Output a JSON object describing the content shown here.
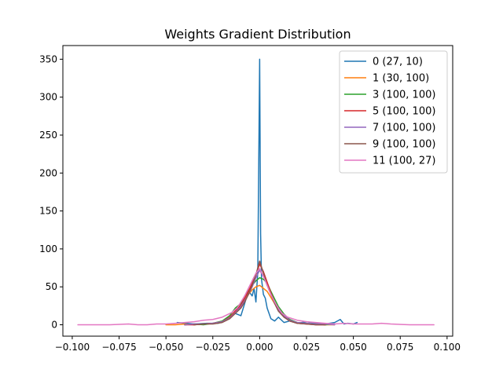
{
  "chart_data": {
    "type": "line",
    "title": "Weights Gradient Distribution",
    "xlabel": "",
    "ylabel": "",
    "xlim": [
      -0.105,
      0.103
    ],
    "ylim": [
      -15,
      368
    ],
    "xticks": [
      -0.1,
      -0.075,
      -0.05,
      -0.025,
      0.0,
      0.025,
      0.05,
      0.075,
      0.1
    ],
    "xtick_labels": [
      "−0.100",
      "−0.075",
      "−0.050",
      "−0.025",
      "0.000",
      "0.025",
      "0.050",
      "0.075",
      "0.100"
    ],
    "yticks": [
      0,
      50,
      100,
      150,
      200,
      250,
      300,
      350
    ],
    "ytick_labels": [
      "0",
      "50",
      "100",
      "150",
      "200",
      "250",
      "300",
      "350"
    ],
    "grid": false,
    "legend_position": "top-right",
    "series": [
      {
        "name": "0 (27, 10)",
        "color": "#1f77b4",
        "x": [
          -0.044,
          -0.035,
          -0.028,
          -0.022,
          -0.017,
          -0.013,
          -0.01,
          -0.008,
          -0.006,
          -0.004,
          -0.003,
          -0.002,
          -0.001,
          0.0,
          0.0005,
          0.001,
          0.002,
          0.003,
          0.004,
          0.005,
          0.006,
          0.008,
          0.01,
          0.013,
          0.016,
          0.02,
          0.025,
          0.03,
          0.035,
          0.04,
          0.043,
          0.045,
          0.047,
          0.05,
          0.052
        ],
        "y": [
          3,
          1,
          2,
          2,
          8,
          15,
          12,
          28,
          45,
          38,
          48,
          30,
          70,
          350,
          120,
          60,
          40,
          35,
          22,
          15,
          8,
          5,
          10,
          3,
          5,
          2,
          4,
          2,
          1,
          3,
          7,
          1,
          2,
          1,
          3
        ]
      },
      {
        "name": "1 (30, 100)",
        "color": "#ff7f0e",
        "x": [
          -0.05,
          -0.045,
          -0.04,
          -0.035,
          -0.03,
          -0.025,
          -0.02,
          -0.016,
          -0.013,
          -0.01,
          -0.008,
          -0.006,
          -0.004,
          -0.002,
          0.0,
          0.002,
          0.004,
          0.006,
          0.008,
          0.01,
          0.013,
          0.016,
          0.02,
          0.025,
          0.03,
          0.035,
          0.04
        ],
        "y": [
          0,
          0,
          1,
          0,
          1,
          2,
          4,
          10,
          18,
          26,
          34,
          40,
          46,
          50,
          52,
          48,
          44,
          36,
          28,
          20,
          12,
          6,
          3,
          1,
          1,
          0,
          0
        ]
      },
      {
        "name": "3 (100, 100)",
        "color": "#2ca02c",
        "x": [
          -0.04,
          -0.035,
          -0.03,
          -0.025,
          -0.02,
          -0.016,
          -0.013,
          -0.01,
          -0.008,
          -0.006,
          -0.004,
          -0.002,
          0.0,
          0.002,
          0.004,
          0.006,
          0.008,
          0.01,
          0.013,
          0.016,
          0.02,
          0.025,
          0.03,
          0.035,
          0.04
        ],
        "y": [
          0,
          1,
          0,
          2,
          5,
          12,
          22,
          28,
          38,
          45,
          52,
          58,
          62,
          60,
          55,
          44,
          34,
          24,
          14,
          7,
          3,
          2,
          1,
          0,
          1
        ]
      },
      {
        "name": "5 (100, 100)",
        "color": "#d62728",
        "x": [
          -0.04,
          -0.035,
          -0.03,
          -0.025,
          -0.02,
          -0.016,
          -0.013,
          -0.01,
          -0.008,
          -0.006,
          -0.004,
          -0.002,
          0.0,
          0.002,
          0.004,
          0.006,
          0.008,
          0.01,
          0.013,
          0.016,
          0.02,
          0.025,
          0.03,
          0.035
        ],
        "y": [
          0,
          0,
          1,
          2,
          4,
          10,
          18,
          26,
          35,
          44,
          55,
          66,
          80,
          70,
          56,
          42,
          30,
          20,
          11,
          5,
          2,
          1,
          0,
          0
        ]
      },
      {
        "name": "7 (100, 100)",
        "color": "#9467bd",
        "x": [
          -0.04,
          -0.035,
          -0.03,
          -0.025,
          -0.02,
          -0.016,
          -0.013,
          -0.01,
          -0.008,
          -0.006,
          -0.004,
          -0.002,
          0.0,
          0.002,
          0.004,
          0.006,
          0.008,
          0.01,
          0.013,
          0.016,
          0.02,
          0.025,
          0.03,
          0.035,
          0.04
        ],
        "y": [
          0,
          1,
          1,
          2,
          4,
          9,
          16,
          24,
          32,
          40,
          50,
          62,
          72,
          64,
          52,
          40,
          30,
          20,
          12,
          6,
          3,
          2,
          1,
          1,
          0
        ]
      },
      {
        "name": "9 (100, 100)",
        "color": "#8c564b",
        "x": [
          -0.035,
          -0.03,
          -0.025,
          -0.02,
          -0.016,
          -0.013,
          -0.01,
          -0.008,
          -0.006,
          -0.004,
          -0.002,
          0.0,
          0.002,
          0.004,
          0.006,
          0.008,
          0.01,
          0.013,
          0.016,
          0.02,
          0.025,
          0.03,
          0.035
        ],
        "y": [
          0,
          1,
          1,
          3,
          8,
          15,
          22,
          30,
          40,
          52,
          66,
          84,
          68,
          52,
          40,
          28,
          18,
          10,
          5,
          2,
          1,
          0,
          0
        ]
      },
      {
        "name": "11 (100, 27)",
        "color": "#e377c2",
        "x": [
          -0.097,
          -0.09,
          -0.08,
          -0.07,
          -0.065,
          -0.06,
          -0.055,
          -0.05,
          -0.045,
          -0.04,
          -0.035,
          -0.03,
          -0.025,
          -0.02,
          -0.015,
          -0.012,
          -0.01,
          -0.008,
          -0.006,
          -0.004,
          -0.002,
          0.0,
          0.002,
          0.004,
          0.006,
          0.008,
          0.01,
          0.012,
          0.015,
          0.02,
          0.025,
          0.03,
          0.035,
          0.04,
          0.045,
          0.05,
          0.055,
          0.06,
          0.065,
          0.07,
          0.08,
          0.09,
          0.093
        ],
        "y": [
          0,
          0,
          0,
          1,
          0,
          0,
          1,
          1,
          2,
          3,
          4,
          6,
          7,
          10,
          16,
          22,
          30,
          38,
          48,
          58,
          68,
          74,
          64,
          52,
          40,
          30,
          22,
          15,
          10,
          6,
          4,
          3,
          2,
          1,
          2,
          1,
          1,
          1,
          2,
          1,
          0,
          0,
          0
        ]
      }
    ]
  }
}
